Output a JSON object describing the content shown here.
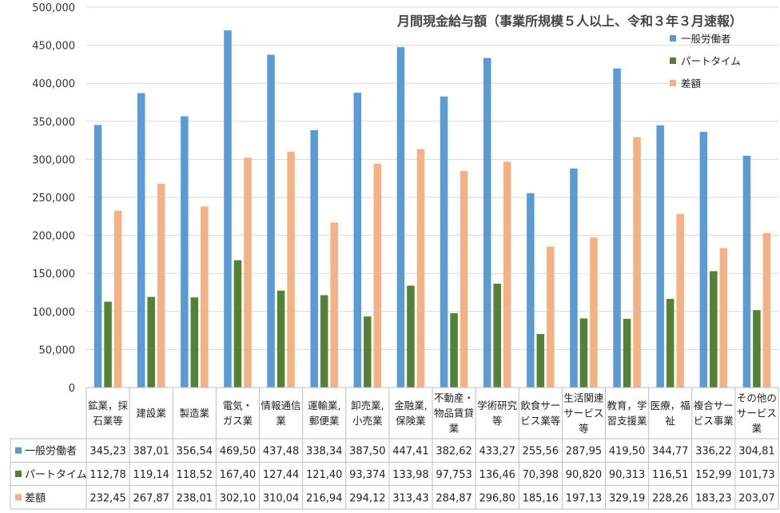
{
  "chart_data": {
    "type": "bar",
    "title": "月間現金給与額（事業所規模５人以上、令和３年３月速報）",
    "xlabel": "",
    "ylabel": "",
    "ylim": [
      0,
      500000
    ],
    "y_ticks": [
      "0",
      "50,000",
      "100,000",
      "150,000",
      "200,000",
      "250,000",
      "300,000",
      "350,000",
      "400,000",
      "450,000",
      "500,000"
    ],
    "y_tick_values": [
      0,
      50000,
      100000,
      150000,
      200000,
      250000,
      300000,
      350000,
      400000,
      450000,
      500000
    ],
    "grid": true,
    "legend_position": "top-right",
    "categories": [
      [
        "鉱業，採",
        "石業等"
      ],
      [
        "建設業"
      ],
      [
        "製造業"
      ],
      [
        "電気・",
        "ガス業"
      ],
      [
        "情報通信",
        "業"
      ],
      [
        "運輸業,",
        "郵便業"
      ],
      [
        "卸売業,",
        "小売業"
      ],
      [
        "金融業,",
        "保険業"
      ],
      [
        "不動産・",
        "物品賃貸",
        "業"
      ],
      [
        "学術研究",
        "等"
      ],
      [
        "飲食サー",
        "ビス業等"
      ],
      [
        "生活関連",
        "サービス",
        "等"
      ],
      [
        "教育，学",
        "習支援業"
      ],
      [
        "医療，福",
        "祉"
      ],
      [
        "複合サー",
        "ビス事業"
      ],
      [
        "その他の",
        "サービス",
        "業"
      ]
    ],
    "series": [
      {
        "name": "一般労働者",
        "color": "#5b9bd5",
        "values": [
          345230,
          387010,
          356540,
          469500,
          437480,
          338340,
          387500,
          447410,
          382620,
          433270,
          255560,
          287950,
          419500,
          344770,
          336220,
          304810
        ],
        "table_text": [
          "345,23",
          "387,01",
          "356,54",
          "469,50",
          "437,48",
          "338,34",
          "387,50",
          "447,41",
          "382,62",
          "433,27",
          "255,56",
          "287,95",
          "419,50",
          "344,77",
          "336,22",
          "304,81"
        ]
      },
      {
        "name": "パートタイム",
        "color": "#548235",
        "values": [
          112780,
          119140,
          118520,
          167400,
          127440,
          121400,
          93374,
          133980,
          97753,
          136460,
          70398,
          90820,
          90313,
          116510,
          152990,
          101730
        ],
        "table_text": [
          "112,78",
          "119,14",
          "118,52",
          "167,40",
          "127,44",
          "121,40",
          "93,374",
          "133,98",
          "97,753",
          "136,46",
          "70,398",
          "90,820",
          "90,313",
          "116,51",
          "152,99",
          "101,73"
        ]
      },
      {
        "name": "差額",
        "color": "#f4b183",
        "values": [
          232450,
          267870,
          238010,
          302100,
          310040,
          216940,
          294120,
          313430,
          284870,
          296800,
          185160,
          197130,
          329190,
          228260,
          183230,
          203070
        ],
        "table_text": [
          "232,45",
          "267,87",
          "238,01",
          "302,10",
          "310,04",
          "216,94",
          "294,12",
          "313,43",
          "284,87",
          "296,80",
          "185,16",
          "197,13",
          "329,19",
          "228,26",
          "183,23",
          "203,07"
        ]
      }
    ]
  }
}
